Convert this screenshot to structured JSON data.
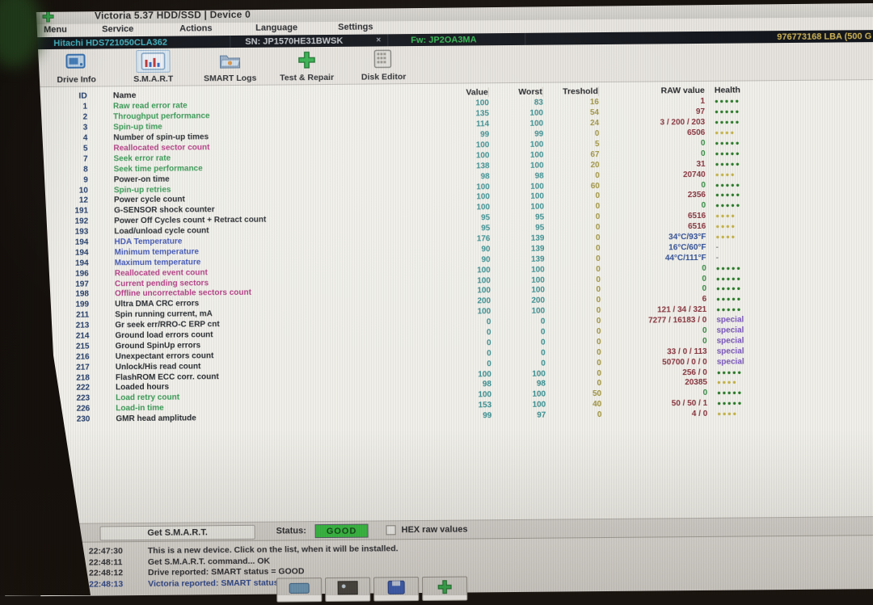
{
  "window": {
    "title": "Victoria 5.37 HDD/SSD | Device 0"
  },
  "menu": {
    "items": [
      "Menu",
      "Service",
      "Actions",
      "Language",
      "Settings"
    ]
  },
  "drive_bar": {
    "model": "Hitachi HDS721050CLA362",
    "serial": "SN: JP1570HE31BWSK",
    "close_glyph": "×",
    "firmware": "Fw: JP2OA3MA",
    "capacity": "976773168 LBA (500 G"
  },
  "toolbar": {
    "buttons": [
      {
        "label": "Drive Info",
        "icon": "drive-info-icon",
        "active": false
      },
      {
        "label": "S.M.A.R.T",
        "icon": "smart-chart-icon",
        "active": true
      },
      {
        "label": "SMART Logs",
        "icon": "smart-logs-folder-icon",
        "active": false
      },
      {
        "label": "Test & Repair",
        "icon": "test-repair-cross-icon",
        "active": false
      },
      {
        "label": "Disk Editor",
        "icon": "disk-editor-icon",
        "active": false
      }
    ]
  },
  "table": {
    "headers": [
      "ID",
      "Name",
      "Value",
      "Worst",
      "Treshold",
      "RAW value",
      "Health"
    ],
    "rows": [
      {
        "id": "1",
        "name": "Raw read error rate",
        "nc": "green",
        "v": "100",
        "w": "83",
        "t": "16",
        "raw": "1",
        "rc": "maroon",
        "h": "g5"
      },
      {
        "id": "2",
        "name": "Throughput performance",
        "nc": "green",
        "v": "135",
        "w": "100",
        "t": "54",
        "raw": "97",
        "rc": "maroon",
        "h": "g5"
      },
      {
        "id": "3",
        "name": "Spin-up time",
        "nc": "green",
        "v": "114",
        "w": "100",
        "t": "24",
        "raw": "3 / 200 / 203",
        "rc": "maroon",
        "h": "g5"
      },
      {
        "id": "4",
        "name": "Number of spin-up times",
        "nc": "black",
        "v": "99",
        "w": "99",
        "t": "0",
        "raw": "6506",
        "rc": "maroon",
        "h": "y4"
      },
      {
        "id": "5",
        "name": "Reallocated sector count",
        "nc": "magenta",
        "v": "100",
        "w": "100",
        "t": "5",
        "raw": "0",
        "rc": "green",
        "h": "g5"
      },
      {
        "id": "7",
        "name": "Seek error rate",
        "nc": "green",
        "v": "100",
        "w": "100",
        "t": "67",
        "raw": "0",
        "rc": "green",
        "h": "g5"
      },
      {
        "id": "8",
        "name": "Seek time performance",
        "nc": "green",
        "v": "138",
        "w": "100",
        "t": "20",
        "raw": "31",
        "rc": "maroon",
        "h": "g5"
      },
      {
        "id": "9",
        "name": "Power-on time",
        "nc": "black",
        "v": "98",
        "w": "98",
        "t": "0",
        "raw": "20740",
        "rc": "maroon",
        "h": "y4"
      },
      {
        "id": "10",
        "name": "Spin-up retries",
        "nc": "green",
        "v": "100",
        "w": "100",
        "t": "60",
        "raw": "0",
        "rc": "green",
        "h": "g5"
      },
      {
        "id": "12",
        "name": "Power cycle count",
        "nc": "black",
        "v": "100",
        "w": "100",
        "t": "0",
        "raw": "2356",
        "rc": "maroon",
        "h": "g5"
      },
      {
        "id": "191",
        "name": "G-SENSOR shock counter",
        "nc": "black",
        "v": "100",
        "w": "100",
        "t": "0",
        "raw": "0",
        "rc": "green",
        "h": "g5"
      },
      {
        "id": "192",
        "name": "Power Off Cycles count + Retract count",
        "nc": "black",
        "v": "95",
        "w": "95",
        "t": "0",
        "raw": "6516",
        "rc": "maroon",
        "h": "y4"
      },
      {
        "id": "193",
        "name": "Load/unload cycle count",
        "nc": "black",
        "v": "95",
        "w": "95",
        "t": "0",
        "raw": "6516",
        "rc": "maroon",
        "h": "y4"
      },
      {
        "id": "194",
        "name": "HDA Temperature",
        "nc": "blue",
        "v": "176",
        "w": "139",
        "t": "0",
        "raw": "34°C/93°F",
        "rc": "blue",
        "h": "y4"
      },
      {
        "id": "194",
        "name": "Minimum temperature",
        "nc": "blue",
        "v": "90",
        "w": "139",
        "t": "0",
        "raw": "16°C/60°F",
        "rc": "blue",
        "h": "dash"
      },
      {
        "id": "194",
        "name": "Maximum temperature",
        "nc": "blue",
        "v": "90",
        "w": "139",
        "t": "0",
        "raw": "44°C/111°F",
        "rc": "blue",
        "h": "dash"
      },
      {
        "id": "196",
        "name": "Reallocated event count",
        "nc": "magenta",
        "v": "100",
        "w": "100",
        "t": "0",
        "raw": "0",
        "rc": "green",
        "h": "g5"
      },
      {
        "id": "197",
        "name": "Current pending sectors",
        "nc": "magenta",
        "v": "100",
        "w": "100",
        "t": "0",
        "raw": "0",
        "rc": "green",
        "h": "g5"
      },
      {
        "id": "198",
        "name": "Offline uncorrectable sectors count",
        "nc": "magenta",
        "v": "100",
        "w": "100",
        "t": "0",
        "raw": "0",
        "rc": "green",
        "h": "g5"
      },
      {
        "id": "199",
        "name": "Ultra DMA CRC errors",
        "nc": "black",
        "v": "200",
        "w": "200",
        "t": "0",
        "raw": "6",
        "rc": "maroon",
        "h": "g5"
      },
      {
        "id": "211",
        "name": "Spin running current, mA",
        "nc": "black",
        "v": "100",
        "w": "100",
        "t": "0",
        "raw": "121 / 34 / 321",
        "rc": "maroon",
        "h": "g5"
      },
      {
        "id": "213",
        "name": "Gr seek err/RRO-C ERP cnt",
        "nc": "black",
        "v": "0",
        "w": "0",
        "t": "0",
        "raw": "7277 / 16183 / 0",
        "rc": "maroon",
        "h": "special"
      },
      {
        "id": "214",
        "name": "Ground load errors count",
        "nc": "black",
        "v": "0",
        "w": "0",
        "t": "0",
        "raw": "0",
        "rc": "green",
        "h": "special"
      },
      {
        "id": "215",
        "name": "Ground SpinUp errors",
        "nc": "black",
        "v": "0",
        "w": "0",
        "t": "0",
        "raw": "0",
        "rc": "green",
        "h": "special"
      },
      {
        "id": "216",
        "name": "Unexpectant errors count",
        "nc": "black",
        "v": "0",
        "w": "0",
        "t": "0",
        "raw": "33 / 0 / 113",
        "rc": "maroon",
        "h": "special"
      },
      {
        "id": "217",
        "name": "Unlock/His read count",
        "nc": "black",
        "v": "0",
        "w": "0",
        "t": "0",
        "raw": "50700 / 0 / 0",
        "rc": "maroon",
        "h": "special"
      },
      {
        "id": "218",
        "name": "FlashROM ECC corr. count",
        "nc": "black",
        "v": "100",
        "w": "100",
        "t": "0",
        "raw": "256 / 0",
        "rc": "maroon",
        "h": "g5"
      },
      {
        "id": "222",
        "name": "Loaded hours",
        "nc": "black",
        "v": "98",
        "w": "98",
        "t": "0",
        "raw": "20385",
        "rc": "maroon",
        "h": "y4"
      },
      {
        "id": "223",
        "name": "Load retry count",
        "nc": "green",
        "v": "100",
        "w": "100",
        "t": "50",
        "raw": "0",
        "rc": "green",
        "h": "g5"
      },
      {
        "id": "226",
        "name": "Load-in time",
        "nc": "green",
        "v": "153",
        "w": "100",
        "t": "40",
        "raw": "50 / 50 / 1",
        "rc": "maroon",
        "h": "g5"
      },
      {
        "id": "230",
        "name": "GMR head amplitude",
        "nc": "black",
        "v": "99",
        "w": "97",
        "t": "0",
        "raw": "4 / 0",
        "rc": "maroon",
        "h": "y4"
      }
    ]
  },
  "bottom": {
    "get_smart_label": "Get S.M.A.R.T.",
    "status_label": "Status:",
    "status_value": "GOOD",
    "hex_checkbox_label": "HEX raw values",
    "hex_checked": false
  },
  "log": {
    "lines": [
      {
        "time": "22:47:30",
        "text": "This is a new device. Click on the list, when it will be installed.",
        "color": "black"
      },
      {
        "time": "22:48:11",
        "text": "Get S.M.A.R.T. command... OK",
        "color": "black"
      },
      {
        "time": "22:48:12",
        "text": "Drive reported: SMART status = GOOD",
        "color": "black"
      },
      {
        "time": "22:48:13",
        "text": "Victoria reported: SMART status = GOOD",
        "color": "blue"
      }
    ]
  },
  "partial_buttons": {
    "icons": [
      "drive-icon",
      "picture-icon",
      "floppy-icon",
      "green-cross-icon"
    ]
  },
  "colors": {
    "status_good_bg": "#2ec73b",
    "health_good_dots": "#1e7c1e",
    "health_warn_dots": "#c9b437",
    "health_special_text": "#7a52c7",
    "raw_nonzero": "#8e2f3a",
    "raw_zero": "#2f8e3f",
    "temperature_text": "#2c4f9e",
    "model_text": "#39b9c9",
    "firmware_text": "#28c24d",
    "capacity_text": "#d9b94c"
  }
}
